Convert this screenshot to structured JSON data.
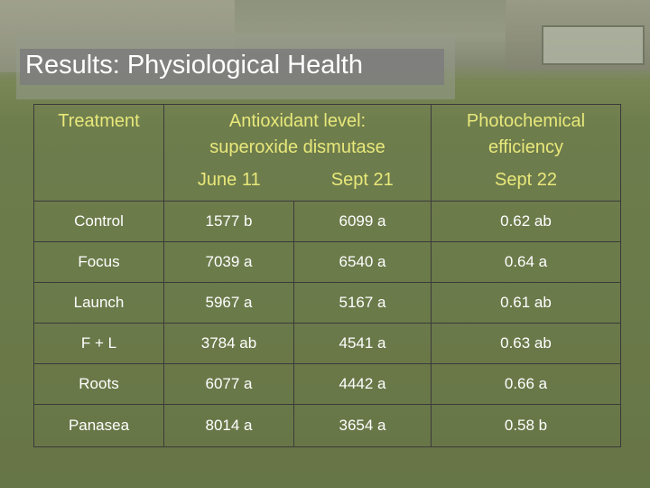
{
  "slide": {
    "title": "Results: Physiological Health"
  },
  "table": {
    "header": {
      "treatment": "Treatment",
      "antioxidant_line1": "Antioxidant level:",
      "antioxidant_line2": "superoxide dismutase",
      "photo_line1": "Photochemical",
      "photo_line2": "efficiency",
      "date_june": "June 11",
      "date_sept21": "Sept 21",
      "date_sept22": "Sept 22"
    },
    "rows": [
      {
        "treatment": "Control",
        "june": "1577 b",
        "sept21": "6099 a",
        "sept22": "0.62 ab"
      },
      {
        "treatment": "Focus",
        "june": "7039 a",
        "sept21": "6540 a",
        "sept22": "0.64 a"
      },
      {
        "treatment": "Launch",
        "june": "5967 a",
        "sept21": "5167 a",
        "sept22": "0.61 ab"
      },
      {
        "treatment": "F + L",
        "june": "3784 ab",
        "sept21": "4541 a",
        "sept22": "0.63 ab"
      },
      {
        "treatment": "Roots",
        "june": "6077 a",
        "sept21": "4442 a",
        "sept22": "0.66 a"
      },
      {
        "treatment": "Panasea",
        "june": "8014 a",
        "sept21": "3654 a",
        "sept22": "0.58 b"
      }
    ]
  },
  "colors": {
    "header_text": "#e8e87a",
    "cell_text": "#ffffff",
    "title_band": "#7d7d7d"
  }
}
